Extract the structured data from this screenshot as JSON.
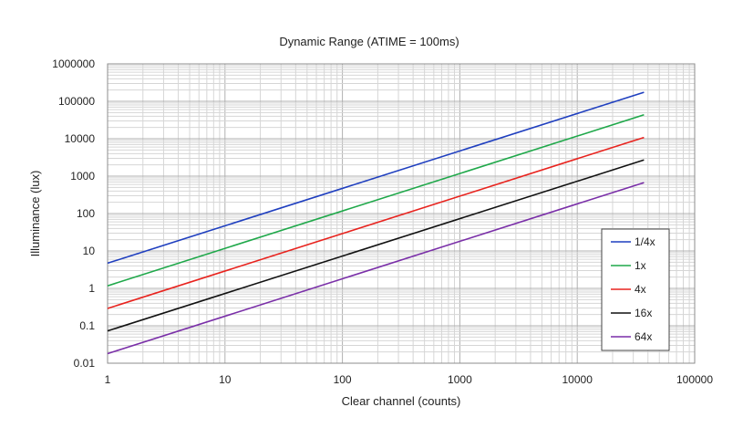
{
  "chart_data": {
    "type": "line",
    "title": "Dynamic Range (ATIME = 100ms)",
    "xlabel": "Clear channel (counts)",
    "ylabel": "Illuminance (lux)",
    "xscale": "log",
    "yscale": "log",
    "xlim": [
      1,
      100000
    ],
    "ylim": [
      0.01,
      1000000
    ],
    "grid": true,
    "legend_position": "right",
    "x_ticks": [
      "1",
      "10",
      "100",
      "1000",
      "10000",
      "100000"
    ],
    "y_ticks": [
      "0.01",
      "0.1",
      "1",
      "10",
      "100",
      "1000",
      "10000",
      "100000",
      "1000000"
    ],
    "series": [
      {
        "name": "1/4x",
        "color": "#1f3fbf",
        "x": [
          1,
          37000
        ],
        "y": [
          4.7,
          174000
        ]
      },
      {
        "name": "1x",
        "color": "#1fa84a",
        "x": [
          1,
          37000
        ],
        "y": [
          1.17,
          43500
        ]
      },
      {
        "name": "4x",
        "color": "#e8231e",
        "x": [
          1,
          37000
        ],
        "y": [
          0.29,
          10800
        ]
      },
      {
        "name": "16x",
        "color": "#111111",
        "x": [
          1,
          37000
        ],
        "y": [
          0.073,
          2700
        ]
      },
      {
        "name": "64x",
        "color": "#7a2fa8",
        "x": [
          1,
          37000
        ],
        "y": [
          0.018,
          670
        ]
      }
    ]
  }
}
